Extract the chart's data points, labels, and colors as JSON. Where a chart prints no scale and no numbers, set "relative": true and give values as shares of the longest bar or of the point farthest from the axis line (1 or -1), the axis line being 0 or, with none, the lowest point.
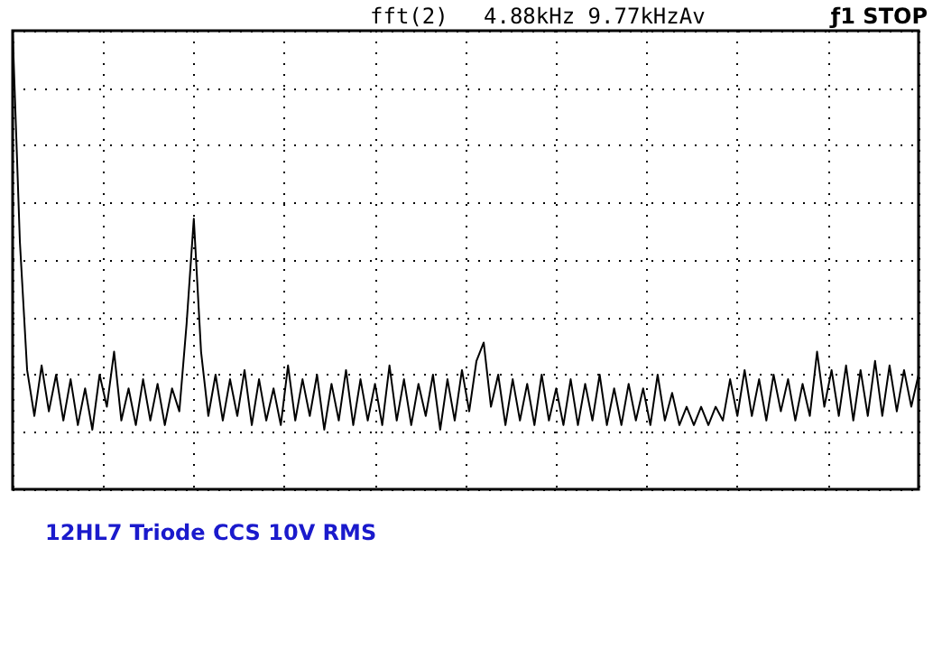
{
  "chart_data": {
    "type": "line",
    "title": "12HL7 Triode CCS 10V RMS",
    "relative": true,
    "grid": true,
    "marker": "none",
    "line_style": "solid",
    "annotations": [
      "fft(2)",
      "4.88kHz 9.77kHzAv",
      "ƒ1 STOP"
    ],
    "categories": [
      null,
      null,
      null,
      null,
      null,
      null,
      null,
      null,
      null,
      null,
      null,
      null,
      null,
      null,
      null,
      null,
      null,
      null,
      null,
      null,
      null,
      null,
      null,
      null,
      null,
      null,
      null,
      null,
      null,
      null,
      null,
      null,
      null,
      null,
      null,
      null,
      null,
      null,
      null,
      null,
      null,
      null,
      null,
      null,
      null,
      null,
      null,
      null,
      null,
      null,
      null,
      null,
      null,
      null,
      null,
      null,
      null,
      null,
      null,
      null,
      null,
      null,
      null,
      null,
      null,
      null,
      null,
      null,
      null,
      null,
      null,
      null,
      null,
      null,
      null,
      null,
      null,
      null,
      null,
      null,
      null,
      null,
      null,
      null,
      null,
      null,
      null,
      null,
      null,
      null,
      null,
      null,
      null,
      null,
      null,
      null,
      null,
      null,
      null,
      null,
      null,
      null,
      null,
      null,
      null,
      null,
      null,
      null,
      null,
      null,
      null,
      null,
      null,
      null,
      null,
      null,
      null,
      null,
      null,
      null,
      null,
      null,
      null,
      null,
      null,
      null
    ],
    "series": [
      {
        "color": "#000000",
        "values": [
          1.0,
          0.54,
          0.26,
          0.16,
          0.27,
          0.17,
          0.25,
          0.15,
          0.24,
          0.14,
          0.22,
          0.13,
          0.25,
          0.18,
          0.3,
          0.15,
          0.22,
          0.14,
          0.24,
          0.15,
          0.23,
          0.14,
          0.22,
          0.17,
          0.36,
          0.59,
          0.3,
          0.16,
          0.25,
          0.15,
          0.24,
          0.16,
          0.26,
          0.14,
          0.24,
          0.15,
          0.22,
          0.14,
          0.27,
          0.15,
          0.24,
          0.16,
          0.25,
          0.13,
          0.23,
          0.15,
          0.26,
          0.14,
          0.24,
          0.15,
          0.23,
          0.14,
          0.27,
          0.15,
          0.24,
          0.14,
          0.23,
          0.16,
          0.25,
          0.13,
          0.24,
          0.15,
          0.26,
          0.17,
          0.28,
          0.32,
          0.18,
          0.25,
          0.14,
          0.24,
          0.15,
          0.23,
          0.14,
          0.25,
          0.15,
          0.22,
          0.14,
          0.24,
          0.14,
          0.23,
          0.15,
          0.25,
          0.14,
          0.22,
          0.14,
          0.23,
          0.15,
          0.22,
          0.14,
          0.25,
          0.15,
          0.21,
          0.14,
          0.18,
          0.14,
          0.18,
          0.14,
          0.18,
          0.15,
          0.24,
          0.16,
          0.26,
          0.16,
          0.24,
          0.15,
          0.25,
          0.17,
          0.24,
          0.15,
          0.23,
          0.16,
          0.3,
          0.18,
          0.26,
          0.16,
          0.27,
          0.15,
          0.26,
          0.16,
          0.28,
          0.16,
          0.27,
          0.17,
          0.26,
          0.18,
          0.25
        ]
      }
    ]
  }
}
